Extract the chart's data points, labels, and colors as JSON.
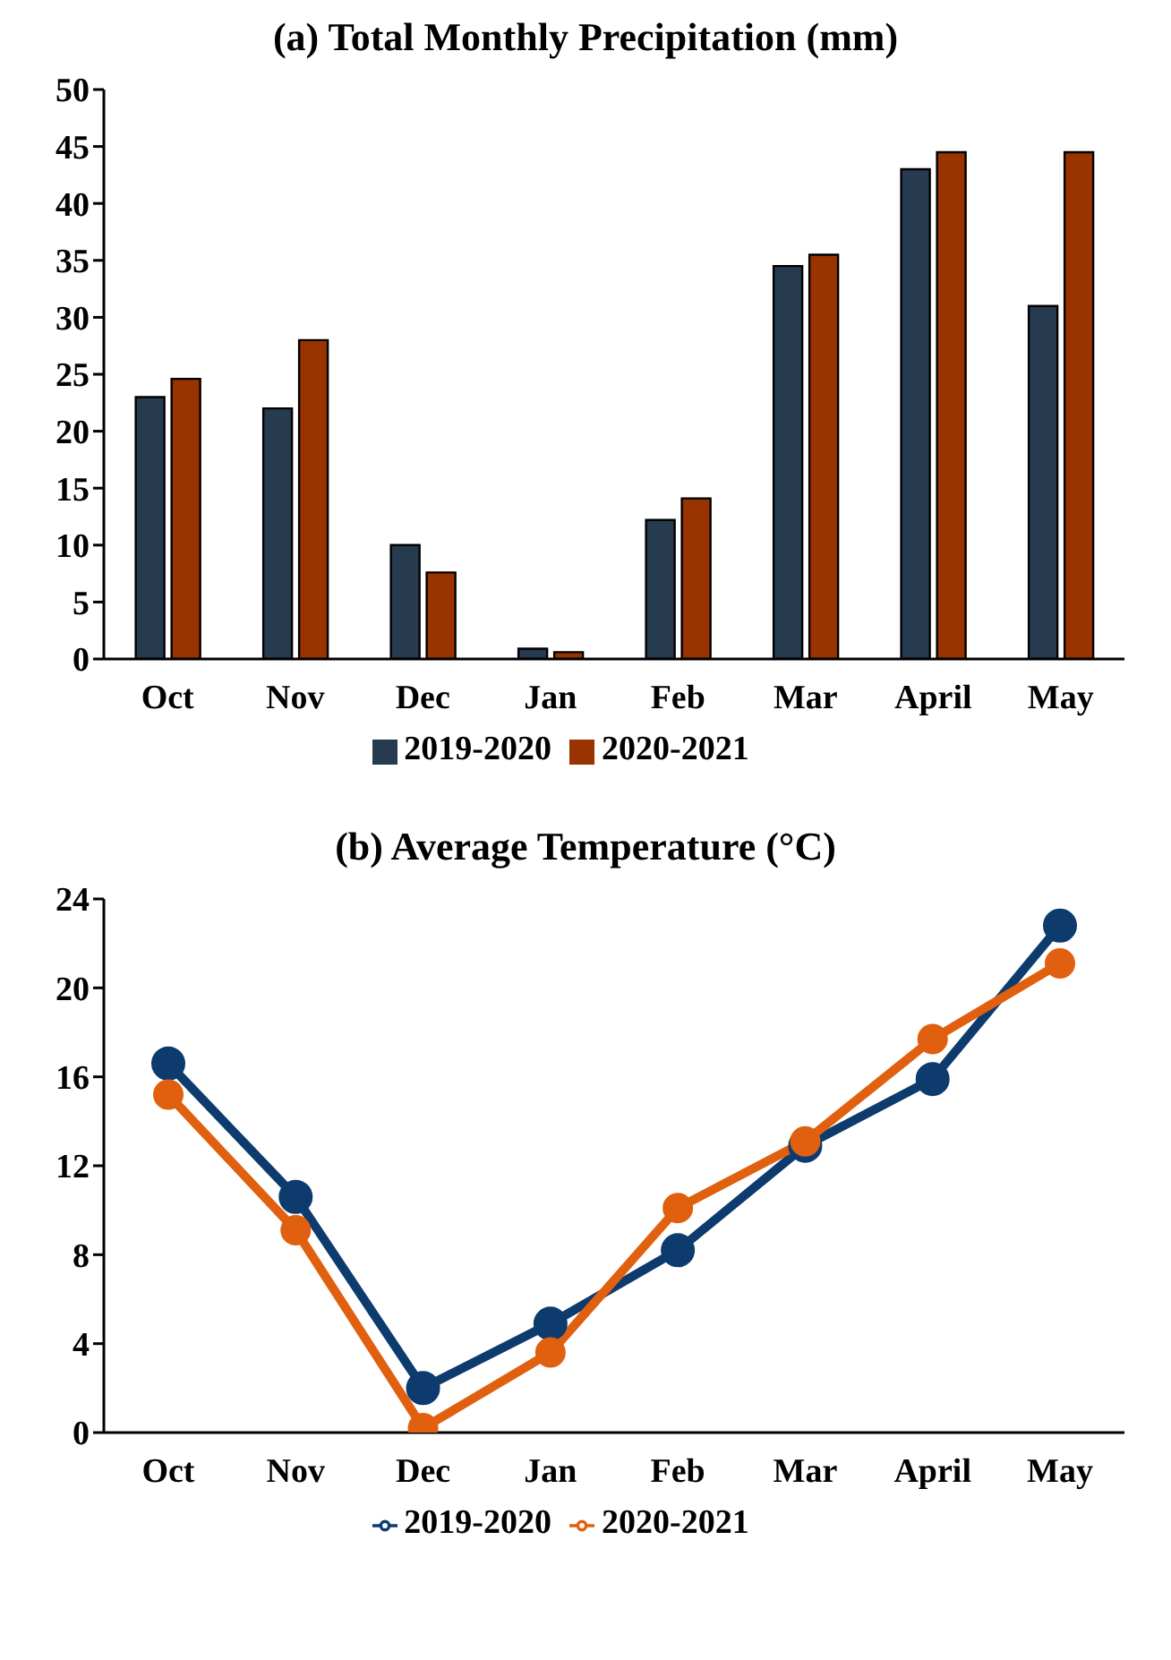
{
  "chart_data": [
    {
      "type": "bar",
      "title": "(a) Total Monthly Precipitation (mm)",
      "categories": [
        "Oct",
        "Nov",
        "Dec",
        "Jan",
        "Feb",
        "Mar",
        "April",
        "May"
      ],
      "series": [
        {
          "name": "2019-2020",
          "color": "#263b50",
          "values": [
            23,
            22,
            10,
            0.9,
            12.2,
            34.5,
            43,
            31
          ]
        },
        {
          "name": "2020-2021",
          "color": "#993300",
          "values": [
            24.6,
            28,
            7.6,
            0.6,
            14.1,
            35.5,
            44.5,
            44.5
          ]
        }
      ],
      "ylim": [
        0,
        50
      ],
      "yticks": [
        0,
        5,
        10,
        15,
        20,
        25,
        30,
        35,
        40,
        45,
        50
      ],
      "grid": false,
      "legend": "bottom"
    },
    {
      "type": "line",
      "title": "(b) Average Temperature (°C)",
      "categories": [
        "Oct",
        "Nov",
        "Dec",
        "Jan",
        "Feb",
        "Mar",
        "April",
        "May"
      ],
      "series": [
        {
          "name": "2019-2020",
          "color": "#0d3b6e",
          "values": [
            16.6,
            10.6,
            2.0,
            4.9,
            8.2,
            12.9,
            15.9,
            22.8
          ]
        },
        {
          "name": "2020-2021",
          "color": "#e0600f",
          "values": [
            15.2,
            9.1,
            0.2,
            3.6,
            10.1,
            13.1,
            17.7,
            21.1
          ]
        }
      ],
      "ylim": [
        0,
        24
      ],
      "yticks": [
        0,
        4,
        8,
        12,
        16,
        20,
        24
      ],
      "grid": false,
      "legend": "bottom",
      "marker": "circle"
    }
  ]
}
